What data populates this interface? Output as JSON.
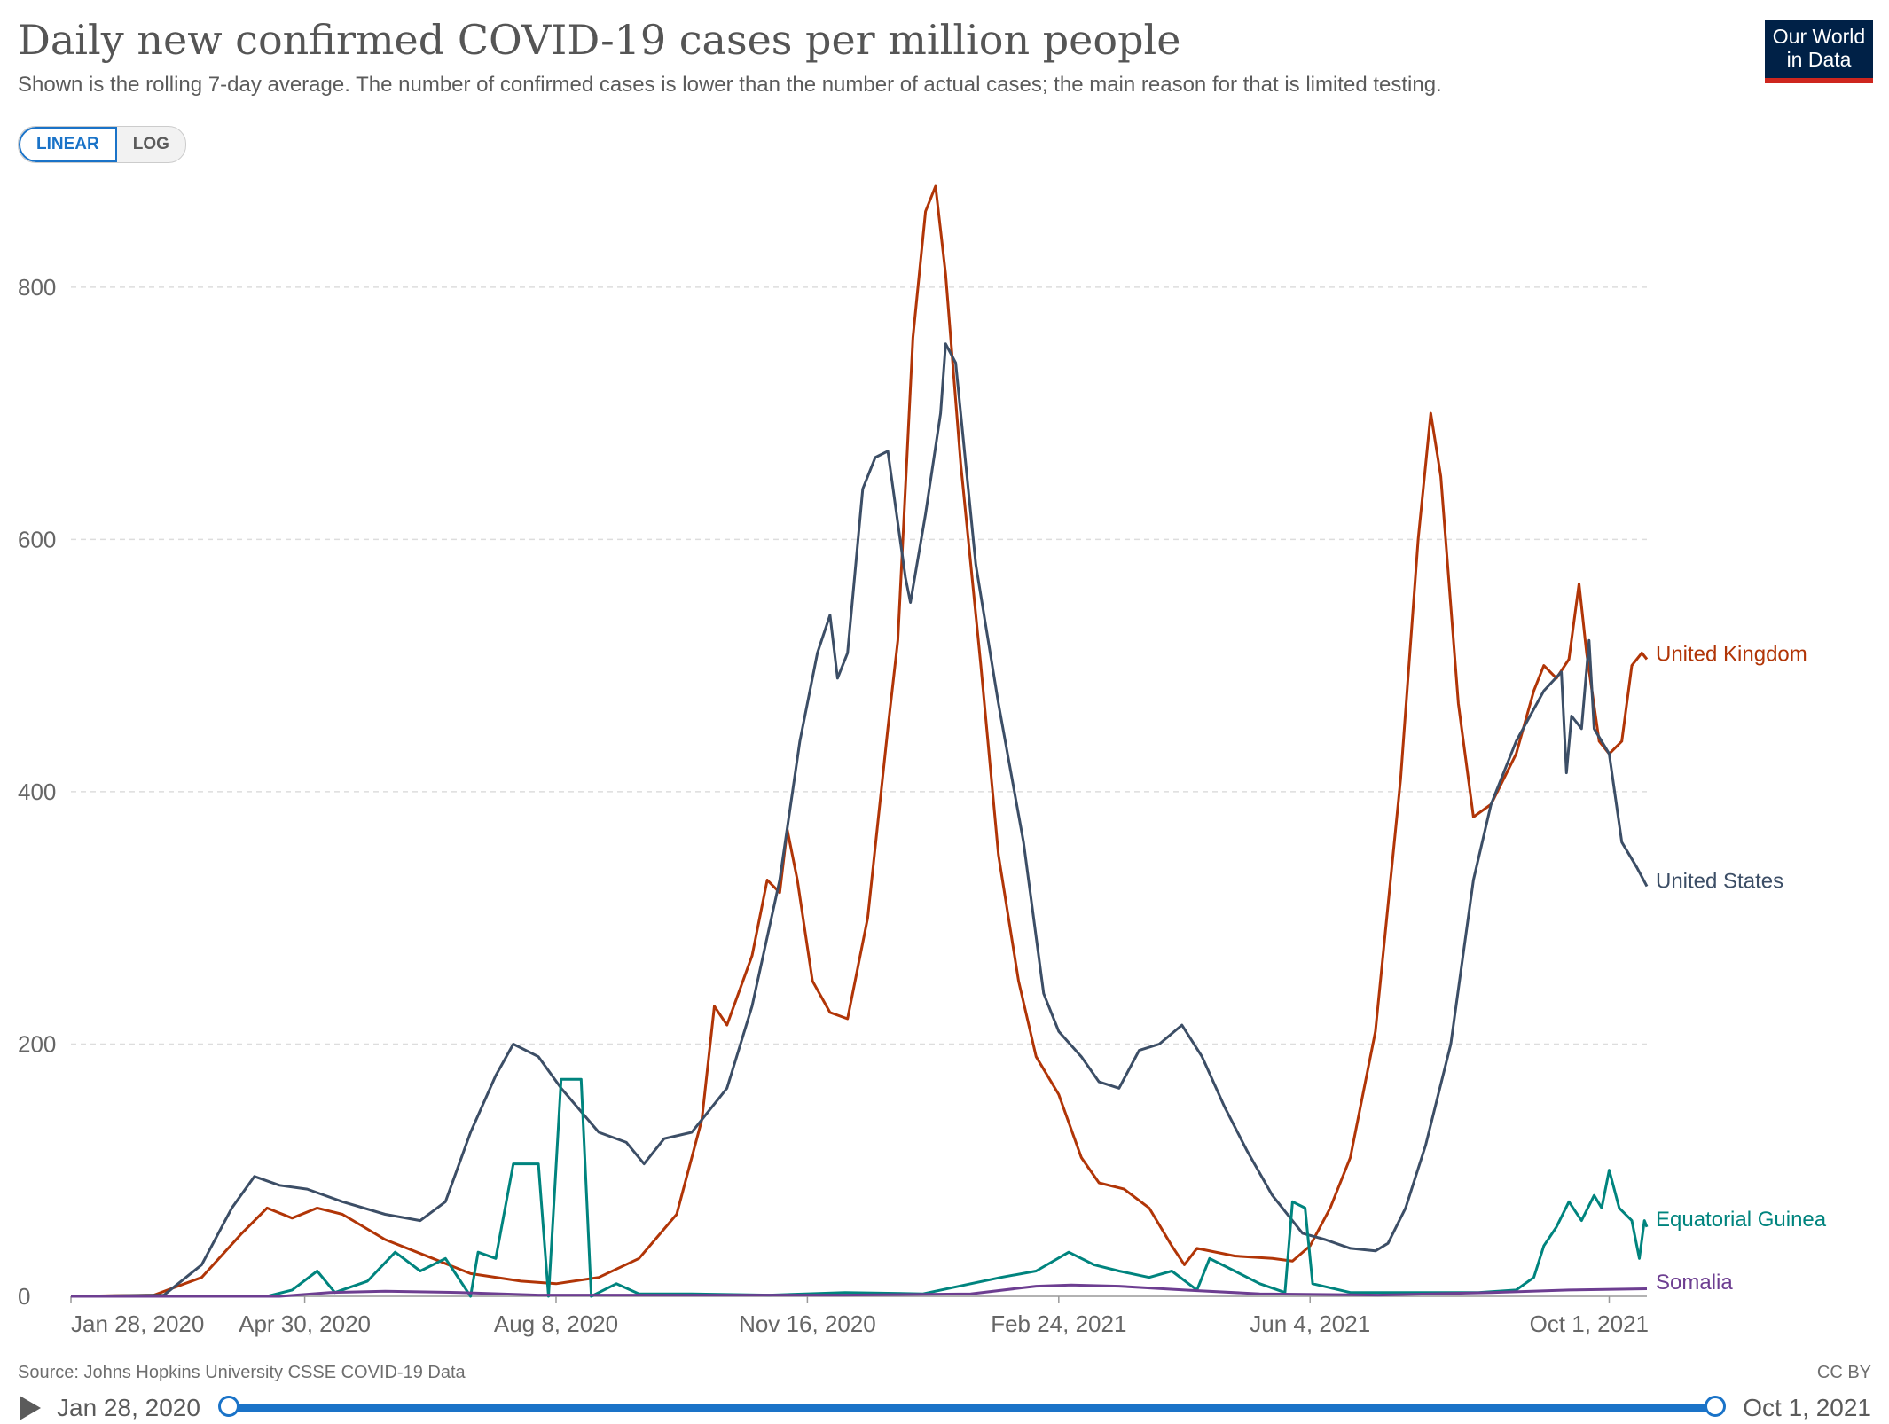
{
  "header": {
    "title": "Daily new confirmed COVID-19 cases per million people",
    "subtitle": "Shown is the rolling 7-day average. The number of confirmed cases is lower than the number of actual cases; the main reason for that is limited testing.",
    "logo_line1": "Our World",
    "logo_line2": "in Data"
  },
  "controls": {
    "linear_label": "LINEAR",
    "log_label": "LOG",
    "active_scale": "linear"
  },
  "footer": {
    "source": "Source: Johns Hopkins University CSSE COVID-19 Data",
    "license": "CC BY"
  },
  "timeline": {
    "start_label": "Jan 28, 2020",
    "end_label": "Oct 1, 2021"
  },
  "colors": {
    "united_kingdom": "#b13507",
    "united_states": "#3c4e66",
    "equatorial_guinea": "#00847e",
    "somalia": "#6d3e91",
    "grid": "#dddddd",
    "axis": "#999999",
    "accent": "#1a73c8"
  },
  "chart_data": {
    "type": "line",
    "title": "Daily new confirmed COVID-19 cases per million people",
    "xlabel": "",
    "ylabel": "",
    "x_range": [
      "2020-01-28",
      "2021-10-01"
    ],
    "ylim": [
      0,
      880
    ],
    "y_ticks": [
      0,
      200,
      400,
      600,
      800
    ],
    "y_tick_labels": [
      "0",
      "200",
      "400",
      "600",
      "800"
    ],
    "x_ticks": [
      "2020-01-28",
      "2020-04-30",
      "2020-08-08",
      "2020-11-16",
      "2021-02-24",
      "2021-06-04",
      "2021-10-01"
    ],
    "x_tick_labels": [
      "Jan 28, 2020",
      "Apr 30, 2020",
      "Aug 8, 2020",
      "Nov 16, 2020",
      "Feb 24, 2021",
      "Jun 4, 2021",
      "Oct 1, 2021"
    ],
    "grid": "horizontal dashed",
    "legend": "right, at line ends",
    "series": [
      {
        "name": "United Kingdom",
        "color_key": "united_kingdom",
        "points": [
          [
            "2020-01-28",
            0
          ],
          [
            "2020-03-01",
            1
          ],
          [
            "2020-03-20",
            15
          ],
          [
            "2020-04-05",
            50
          ],
          [
            "2020-04-15",
            70
          ],
          [
            "2020-04-25",
            62
          ],
          [
            "2020-05-05",
            70
          ],
          [
            "2020-05-15",
            65
          ],
          [
            "2020-06-01",
            45
          ],
          [
            "2020-06-20",
            30
          ],
          [
            "2020-07-05",
            18
          ],
          [
            "2020-07-25",
            12
          ],
          [
            "2020-08-08",
            10
          ],
          [
            "2020-08-25",
            15
          ],
          [
            "2020-09-10",
            30
          ],
          [
            "2020-09-25",
            65
          ],
          [
            "2020-10-05",
            140
          ],
          [
            "2020-10-10",
            230
          ],
          [
            "2020-10-15",
            215
          ],
          [
            "2020-10-25",
            270
          ],
          [
            "2020-10-31",
            330
          ],
          [
            "2020-11-05",
            320
          ],
          [
            "2020-11-08",
            370
          ],
          [
            "2020-11-12",
            330
          ],
          [
            "2020-11-18",
            250
          ],
          [
            "2020-11-25",
            225
          ],
          [
            "2020-12-02",
            220
          ],
          [
            "2020-12-10",
            300
          ],
          [
            "2020-12-18",
            450
          ],
          [
            "2020-12-22",
            520
          ],
          [
            "2020-12-28",
            760
          ],
          [
            "2021-01-02",
            860
          ],
          [
            "2021-01-06",
            880
          ],
          [
            "2021-01-10",
            810
          ],
          [
            "2021-01-16",
            660
          ],
          [
            "2021-01-24",
            500
          ],
          [
            "2021-01-31",
            350
          ],
          [
            "2021-02-08",
            250
          ],
          [
            "2021-02-15",
            190
          ],
          [
            "2021-02-24",
            160
          ],
          [
            "2021-03-05",
            110
          ],
          [
            "2021-03-12",
            90
          ],
          [
            "2021-03-22",
            85
          ],
          [
            "2021-04-01",
            70
          ],
          [
            "2021-04-10",
            40
          ],
          [
            "2021-04-15",
            25
          ],
          [
            "2021-04-20",
            38
          ],
          [
            "2021-05-05",
            32
          ],
          [
            "2021-05-20",
            30
          ],
          [
            "2021-05-28",
            28
          ],
          [
            "2021-06-04",
            40
          ],
          [
            "2021-06-12",
            70
          ],
          [
            "2021-06-20",
            110
          ],
          [
            "2021-06-30",
            210
          ],
          [
            "2021-07-10",
            410
          ],
          [
            "2021-07-17",
            600
          ],
          [
            "2021-07-22",
            700
          ],
          [
            "2021-07-26",
            650
          ],
          [
            "2021-08-02",
            470
          ],
          [
            "2021-08-08",
            380
          ],
          [
            "2021-08-15",
            390
          ],
          [
            "2021-08-25",
            430
          ],
          [
            "2021-09-01",
            480
          ],
          [
            "2021-09-05",
            500
          ],
          [
            "2021-09-10",
            490
          ],
          [
            "2021-09-15",
            505
          ],
          [
            "2021-09-19",
            565
          ],
          [
            "2021-09-22",
            510
          ],
          [
            "2021-09-27",
            440
          ],
          [
            "2021-10-01",
            430
          ],
          [
            "2021-10-06",
            440
          ],
          [
            "2021-10-10",
            500
          ],
          [
            "2021-10-14",
            510
          ],
          [
            "2021-10-16",
            505
          ]
        ]
      },
      {
        "name": "United States",
        "color_key": "united_states",
        "points": [
          [
            "2020-01-28",
            0
          ],
          [
            "2020-03-05",
            1
          ],
          [
            "2020-03-20",
            25
          ],
          [
            "2020-04-01",
            70
          ],
          [
            "2020-04-10",
            95
          ],
          [
            "2020-04-20",
            88
          ],
          [
            "2020-05-01",
            85
          ],
          [
            "2020-05-15",
            75
          ],
          [
            "2020-06-01",
            65
          ],
          [
            "2020-06-15",
            60
          ],
          [
            "2020-06-25",
            75
          ],
          [
            "2020-07-05",
            130
          ],
          [
            "2020-07-15",
            175
          ],
          [
            "2020-07-22",
            200
          ],
          [
            "2020-08-01",
            190
          ],
          [
            "2020-08-10",
            165
          ],
          [
            "2020-08-25",
            130
          ],
          [
            "2020-09-05",
            122
          ],
          [
            "2020-09-12",
            105
          ],
          [
            "2020-09-20",
            125
          ],
          [
            "2020-10-01",
            130
          ],
          [
            "2020-10-15",
            165
          ],
          [
            "2020-10-25",
            230
          ],
          [
            "2020-11-05",
            330
          ],
          [
            "2020-11-13",
            440
          ],
          [
            "2020-11-20",
            510
          ],
          [
            "2020-11-25",
            540
          ],
          [
            "2020-11-28",
            490
          ],
          [
            "2020-12-02",
            510
          ],
          [
            "2020-12-08",
            640
          ],
          [
            "2020-12-13",
            665
          ],
          [
            "2020-12-18",
            670
          ],
          [
            "2020-12-25",
            570
          ],
          [
            "2020-12-27",
            550
          ],
          [
            "2021-01-02",
            620
          ],
          [
            "2021-01-08",
            700
          ],
          [
            "2021-01-10",
            755
          ],
          [
            "2021-01-14",
            740
          ],
          [
            "2021-01-22",
            580
          ],
          [
            "2021-01-31",
            470
          ],
          [
            "2021-02-10",
            360
          ],
          [
            "2021-02-18",
            240
          ],
          [
            "2021-02-24",
            210
          ],
          [
            "2021-03-05",
            190
          ],
          [
            "2021-03-12",
            170
          ],
          [
            "2021-03-20",
            165
          ],
          [
            "2021-03-28",
            195
          ],
          [
            "2021-04-05",
            200
          ],
          [
            "2021-04-14",
            215
          ],
          [
            "2021-04-22",
            190
          ],
          [
            "2021-05-01",
            150
          ],
          [
            "2021-05-10",
            115
          ],
          [
            "2021-05-20",
            80
          ],
          [
            "2021-06-01",
            50
          ],
          [
            "2021-06-10",
            45
          ],
          [
            "2021-06-20",
            38
          ],
          [
            "2021-06-30",
            36
          ],
          [
            "2021-07-05",
            42
          ],
          [
            "2021-07-12",
            70
          ],
          [
            "2021-07-20",
            120
          ],
          [
            "2021-07-30",
            200
          ],
          [
            "2021-08-08",
            330
          ],
          [
            "2021-08-15",
            390
          ],
          [
            "2021-08-25",
            440
          ],
          [
            "2021-09-05",
            480
          ],
          [
            "2021-09-12",
            495
          ],
          [
            "2021-09-14",
            415
          ],
          [
            "2021-09-16",
            460
          ],
          [
            "2021-09-20",
            450
          ],
          [
            "2021-09-23",
            520
          ],
          [
            "2021-09-25",
            450
          ],
          [
            "2021-10-01",
            430
          ],
          [
            "2021-10-06",
            360
          ],
          [
            "2021-10-12",
            340
          ],
          [
            "2021-10-16",
            325
          ]
        ]
      },
      {
        "name": "Equatorial Guinea",
        "color_key": "equatorial_guinea",
        "points": [
          [
            "2020-01-28",
            0
          ],
          [
            "2020-04-15",
            0
          ],
          [
            "2020-04-25",
            5
          ],
          [
            "2020-05-05",
            20
          ],
          [
            "2020-05-12",
            3
          ],
          [
            "2020-05-25",
            12
          ],
          [
            "2020-06-05",
            35
          ],
          [
            "2020-06-15",
            20
          ],
          [
            "2020-06-25",
            30
          ],
          [
            "2020-07-05",
            0
          ],
          [
            "2020-07-08",
            35
          ],
          [
            "2020-07-15",
            30
          ],
          [
            "2020-07-22",
            105
          ],
          [
            "2020-08-01",
            105
          ],
          [
            "2020-08-05",
            0
          ],
          [
            "2020-08-10",
            172
          ],
          [
            "2020-08-18",
            172
          ],
          [
            "2020-08-22",
            0
          ],
          [
            "2020-09-01",
            10
          ],
          [
            "2020-09-10",
            2
          ],
          [
            "2020-10-01",
            2
          ],
          [
            "2020-11-01",
            1
          ],
          [
            "2020-12-01",
            3
          ],
          [
            "2021-01-01",
            2
          ],
          [
            "2021-01-20",
            10
          ],
          [
            "2021-02-01",
            15
          ],
          [
            "2021-02-15",
            20
          ],
          [
            "2021-02-28",
            35
          ],
          [
            "2021-03-10",
            25
          ],
          [
            "2021-03-20",
            20
          ],
          [
            "2021-04-01",
            15
          ],
          [
            "2021-04-10",
            20
          ],
          [
            "2021-04-20",
            5
          ],
          [
            "2021-04-25",
            30
          ],
          [
            "2021-05-05",
            20
          ],
          [
            "2021-05-15",
            10
          ],
          [
            "2021-05-25",
            3
          ],
          [
            "2021-05-28",
            75
          ],
          [
            "2021-06-02",
            70
          ],
          [
            "2021-06-05",
            10
          ],
          [
            "2021-06-20",
            3
          ],
          [
            "2021-07-20",
            3
          ],
          [
            "2021-08-10",
            3
          ],
          [
            "2021-08-25",
            5
          ],
          [
            "2021-09-01",
            15
          ],
          [
            "2021-09-05",
            40
          ],
          [
            "2021-09-10",
            55
          ],
          [
            "2021-09-15",
            75
          ],
          [
            "2021-09-20",
            60
          ],
          [
            "2021-09-25",
            80
          ],
          [
            "2021-09-28",
            70
          ],
          [
            "2021-10-01",
            100
          ],
          [
            "2021-10-05",
            70
          ],
          [
            "2021-10-10",
            60
          ],
          [
            "2021-10-13",
            30
          ],
          [
            "2021-10-15",
            60
          ],
          [
            "2021-10-16",
            55
          ]
        ]
      },
      {
        "name": "Somalia",
        "color_key": "somalia",
        "points": [
          [
            "2020-01-28",
            0
          ],
          [
            "2020-04-20",
            0
          ],
          [
            "2020-05-10",
            3
          ],
          [
            "2020-06-01",
            4
          ],
          [
            "2020-07-01",
            3
          ],
          [
            "2020-08-01",
            1
          ],
          [
            "2020-10-01",
            1
          ],
          [
            "2020-12-01",
            1
          ],
          [
            "2021-01-20",
            2
          ],
          [
            "2021-02-15",
            8
          ],
          [
            "2021-03-01",
            9
          ],
          [
            "2021-03-20",
            8
          ],
          [
            "2021-04-15",
            5
          ],
          [
            "2021-05-15",
            2
          ],
          [
            "2021-07-01",
            1
          ],
          [
            "2021-08-15",
            3
          ],
          [
            "2021-09-15",
            5
          ],
          [
            "2021-10-16",
            6
          ]
        ]
      }
    ]
  }
}
